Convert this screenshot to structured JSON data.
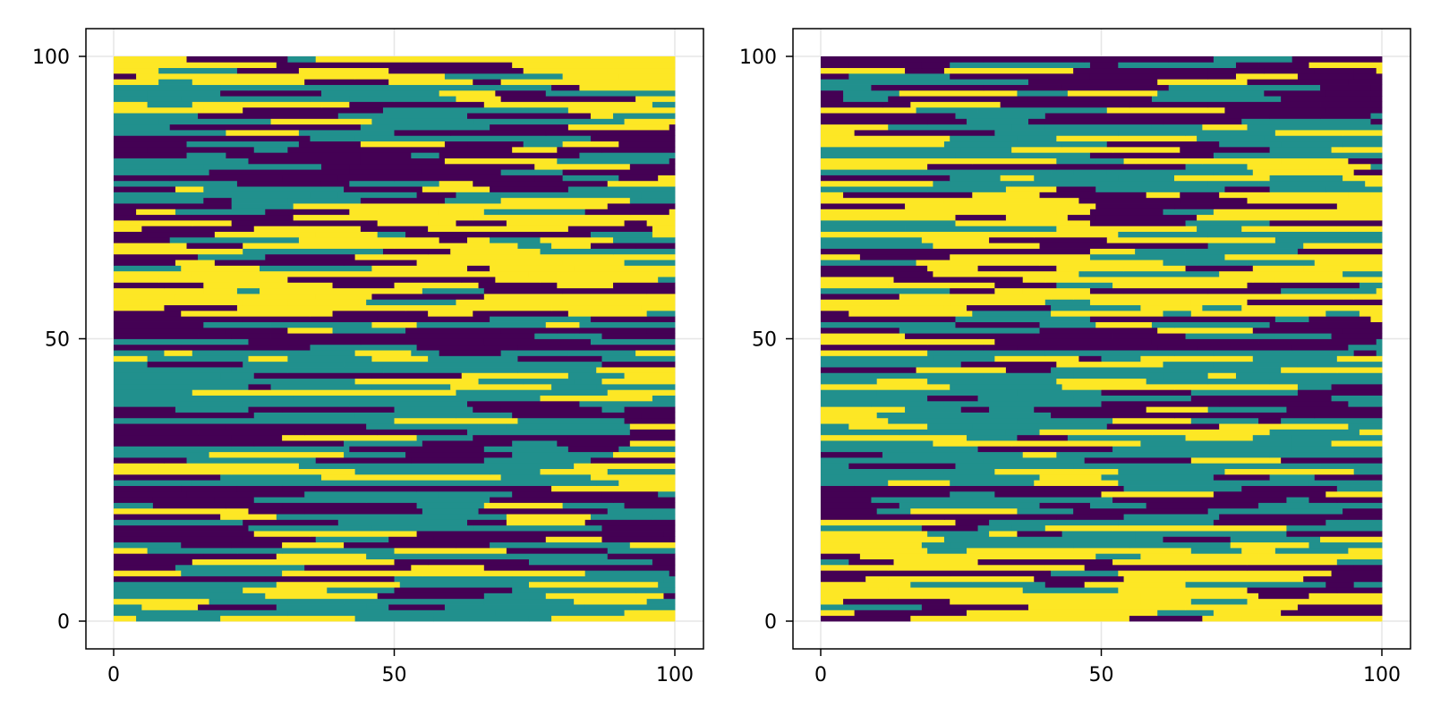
{
  "chart_data": [
    {
      "type": "heatmap",
      "panel": "left",
      "title": "",
      "xlabel": "",
      "ylabel": "",
      "xlim": [
        0,
        100
      ],
      "ylim": [
        0,
        100
      ],
      "x_ticks": [
        "0",
        "50",
        "100"
      ],
      "y_ticks": [
        "0",
        "50",
        "100"
      ],
      "grid": true,
      "color_levels": [
        {
          "level": 0,
          "color": "#440154"
        },
        {
          "level": 1,
          "color": "#21908d"
        },
        {
          "level": 2,
          "color": "#fde725"
        }
      ],
      "description_of_field": "categorical 3-level field on a 100x100 grid; horizontally elongated stripes",
      "band_value_by_y": [
        {
          "y_from": 0,
          "y_to": 9,
          "level": 1
        },
        {
          "y_from": 9,
          "y_to": 24,
          "level": 0
        },
        {
          "y_from": 24,
          "y_to": 28,
          "level": 1
        },
        {
          "y_from": 28,
          "y_to": 38,
          "level": 0
        },
        {
          "y_from": 38,
          "y_to": 48,
          "level": 1
        },
        {
          "y_from": 48,
          "y_to": 54,
          "level": 0
        },
        {
          "y_from": 54,
          "y_to": 65,
          "level": 2
        },
        {
          "y_from": 65,
          "y_to": 74,
          "level": 2
        },
        {
          "y_from": 74,
          "y_to": 88,
          "level": 0
        },
        {
          "y_from": 88,
          "y_to": 95,
          "level": 1
        },
        {
          "y_from": 95,
          "y_to": 100,
          "level": 2
        }
      ]
    },
    {
      "type": "heatmap",
      "panel": "right",
      "title": "",
      "xlabel": "",
      "ylabel": "",
      "xlim": [
        0,
        100
      ],
      "ylim": [
        0,
        100
      ],
      "x_ticks": [
        "0",
        "50",
        "100"
      ],
      "y_ticks": [
        "0",
        "50",
        "100"
      ],
      "grid": true,
      "color_levels": [
        {
          "level": 0,
          "color": "#440154"
        },
        {
          "level": 1,
          "color": "#21908d"
        },
        {
          "level": 2,
          "color": "#fde725"
        }
      ],
      "description_of_field": "categorical 3-level field on a 100x100 grid; horizontally elongated stripes",
      "band_value_by_y": [
        {
          "y_from": 0,
          "y_to": 10,
          "level": 2
        },
        {
          "y_from": 10,
          "y_to": 18,
          "level": 1
        },
        {
          "y_from": 18,
          "y_to": 24,
          "level": 0
        },
        {
          "y_from": 24,
          "y_to": 36,
          "level": 1
        },
        {
          "y_from": 36,
          "y_to": 48,
          "level": 1
        },
        {
          "y_from": 48,
          "y_to": 54,
          "level": 0
        },
        {
          "y_from": 54,
          "y_to": 63,
          "level": 2
        },
        {
          "y_from": 63,
          "y_to": 70,
          "level": 1
        },
        {
          "y_from": 70,
          "y_to": 76,
          "level": 2
        },
        {
          "y_from": 76,
          "y_to": 88,
          "level": 1
        },
        {
          "y_from": 88,
          "y_to": 100,
          "level": 0
        }
      ]
    }
  ]
}
